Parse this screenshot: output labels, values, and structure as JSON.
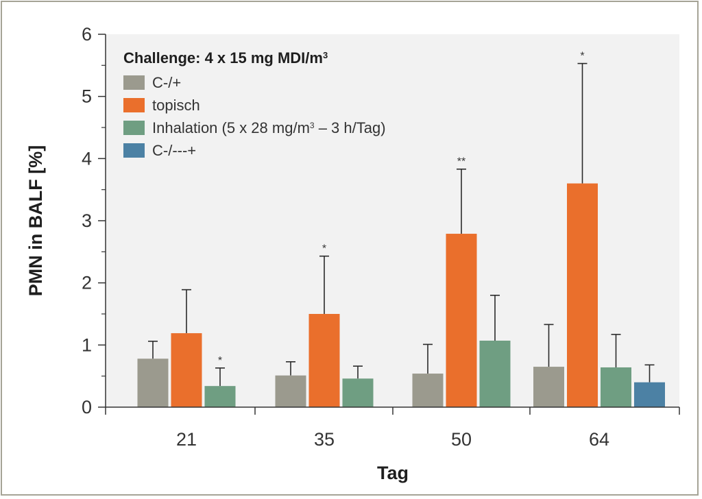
{
  "chart_data": {
    "type": "bar",
    "xlabel": "Tag",
    "ylabel": "PMN in BALF [%]",
    "ylim": [
      0,
      6
    ],
    "yticks": [
      "0",
      "1",
      "2",
      "3",
      "4",
      "5",
      "6"
    ],
    "categories": [
      "21",
      "35",
      "50",
      "64"
    ],
    "legend": {
      "title": "Challenge: 4 x 15 mg MDI/m",
      "title_superscript": "3",
      "placement": "top-left"
    },
    "series": [
      {
        "name": "C-/+",
        "legend_html": "C-/+",
        "color": "#9b9a8e",
        "values": [
          0.78,
          0.51,
          0.54,
          0.65
        ],
        "error_upper": [
          1.06,
          0.73,
          1.01,
          1.33
        ],
        "significance": [
          "",
          "",
          "",
          ""
        ]
      },
      {
        "name": "topisch",
        "legend_html": "topisch",
        "color": "#ea6f2c",
        "values": [
          1.19,
          1.5,
          2.79,
          3.6
        ],
        "error_upper": [
          1.89,
          2.43,
          3.83,
          5.53
        ],
        "significance": [
          "",
          "*",
          "**",
          "*"
        ]
      },
      {
        "name": "Inhalation (5 x 28 mg/m3 – 3 h/Tag)",
        "legend_html": "Inhalation (5 x 28 mg/m<tspan baseline-shift=\"super\" font-size=\"12\">3</tspan> – 3 h/Tag)",
        "color": "#6f9e82",
        "values": [
          0.34,
          0.46,
          1.07,
          0.64
        ],
        "error_upper": [
          0.63,
          0.66,
          1.8,
          1.17
        ],
        "significance": [
          "*",
          "",
          "",
          ""
        ]
      },
      {
        "name": "C-/---+",
        "legend_html": "C-/---+",
        "color": "#4c81a4",
        "values": [
          null,
          null,
          null,
          0.4
        ],
        "error_upper": [
          null,
          null,
          null,
          0.68
        ],
        "significance": [
          "",
          "",
          "",
          ""
        ]
      }
    ]
  }
}
